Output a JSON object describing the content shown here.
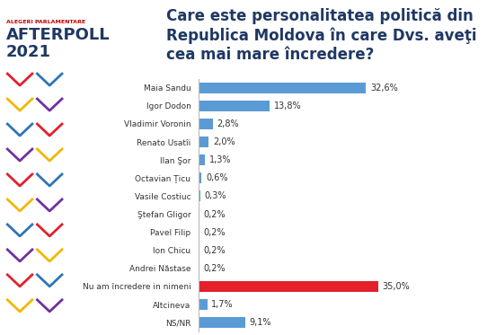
{
  "chart_data": {
    "type": "bar",
    "orientation": "horizontal",
    "title": "Care este personalitatea politică din Republica Moldova în care Dvs. aveţi cea mai mare încredere?",
    "annotations": [
      "ALEGERI PARLAMENTARE",
      "AFTERPOLL",
      "2021"
    ],
    "categories": [
      "Maia Sandu",
      "Igor Dodon",
      "Vladimir Voronin",
      "Renato Usatîi",
      "Ilan Şor",
      "Octavian Ţicu",
      "Vasile Costiuc",
      "Ştefan Gligor",
      "Pavel Filip",
      "Ion Chicu",
      "Andrei Năstase",
      "Nu am încredere in nimeni",
      "Altcineva",
      "NS/NR"
    ],
    "values": [
      32.6,
      13.8,
      2.8,
      2.0,
      1.3,
      0.6,
      0.3,
      0.2,
      0.2,
      0.2,
      0.2,
      35.0,
      1.7,
      9.1
    ],
    "value_labels": [
      "32,6%",
      "13,8%",
      "2,8%",
      "2,0%",
      "1,3%",
      "0,6%",
      "0,3%",
      "0,2%",
      "0,2%",
      "0,2%",
      "0,2%",
      "35,0%",
      "1,7%",
      "9,1%"
    ],
    "colors": [
      "#5b9bd5",
      "#5b9bd5",
      "#5b9bd5",
      "#5b9bd5",
      "#5b9bd5",
      "#5b9bd5",
      "#5b9bd5",
      "#5b9bd5",
      "#5b9bd5",
      "#5b9bd5",
      "#5b9bd5",
      "#e3202b",
      "#5b9bd5",
      "#5b9bd5"
    ],
    "data_labels": true,
    "tick_labels": "y",
    "grid": false
  }
}
